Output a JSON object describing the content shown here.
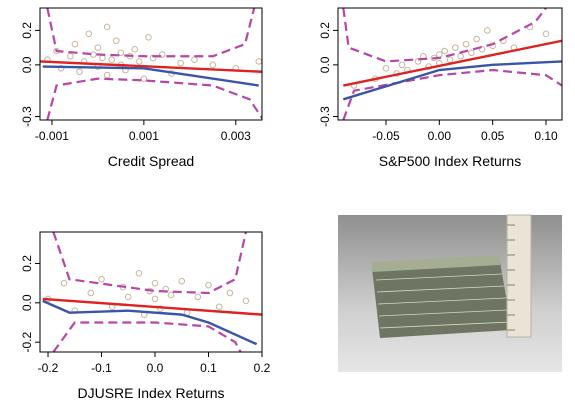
{
  "chart_data": [
    {
      "type": "scatter",
      "x_label": "Credit Spread",
      "xlim": [
        -0.00126,
        0.00357
      ],
      "xticks": [
        -0.001,
        0.001,
        0.003
      ],
      "ylim": [
        -0.32,
        0.33
      ],
      "yticks": [
        -0.3,
        {
          "value": 0,
          "label": "0.0"
        },
        0.2
      ],
      "series": [
        {
          "style": "points",
          "color": "#c9b59c",
          "x": [
            -0.0011,
            -0.0009,
            -0.0008,
            -0.0006,
            -0.0005,
            -0.0004,
            -0.0003,
            -0.0002,
            -0.0001,
            0,
            0,
            0.0001,
            0.0002,
            0.0002,
            0.0003,
            0.0004,
            0.0005,
            0.0005,
            0.0006,
            0.0007,
            0.0008,
            0.0009,
            0.001,
            0.0011,
            0.0012,
            0.0014,
            0.0016,
            0.0018,
            0.0021,
            0.0025,
            0.003,
            0.0035
          ],
          "values": [
            0.03,
            0.08,
            -0.02,
            0.05,
            0.12,
            -0.04,
            0.02,
            0.18,
            0.06,
            -0.01,
            0.1,
            0.04,
            0.22,
            -0.06,
            0.03,
            0.14,
            0,
            0.07,
            -0.03,
            0.05,
            0.09,
            0.02,
            -0.08,
            0.16,
            0.04,
            0.06,
            -0.05,
            0.01,
            0.03,
            0,
            -0.02,
            0.02
          ]
        },
        {
          "style": "dashed",
          "color": "#b845a8",
          "x": [
            -0.0011,
            -0.0009,
            0,
            0.001,
            0.0025,
            0.0032,
            0.0034
          ],
          "values": [
            0.33,
            0.08,
            0.06,
            0.05,
            0.05,
            0.12,
            0.33
          ]
        },
        {
          "style": "dashed",
          "color": "#b845a8",
          "x": [
            -0.0011,
            -0.0009,
            0,
            0.001,
            0.0025,
            0.0033,
            0.0036
          ],
          "values": [
            -0.32,
            -0.12,
            -0.08,
            -0.09,
            -0.12,
            -0.2,
            -0.32
          ]
        },
        {
          "style": "line",
          "color": "#3a55a8",
          "x": [
            -0.0012,
            0.001,
            0.002,
            0.0035
          ],
          "values": [
            -0.01,
            -0.02,
            -0.06,
            -0.12
          ]
        },
        {
          "style": "line",
          "color": "#dd2222",
          "x": [
            -0.00126,
            0.00357
          ],
          "values": [
            0.02,
            -0.04
          ]
        }
      ]
    },
    {
      "type": "scatter",
      "x_label": "S&P500 Index Returns",
      "xlim": [
        -0.095,
        0.115
      ],
      "xticks": [
        -0.05,
        {
          "value": 0,
          "label": "0.00"
        },
        0.05,
        {
          "value": 0.1,
          "label": "0.10"
        }
      ],
      "ylim": [
        -0.32,
        0.33
      ],
      "yticks": [
        -0.3,
        {
          "value": 0,
          "label": "0.0"
        },
        0.2
      ],
      "series": [
        {
          "style": "points",
          "color": "#c9b59c",
          "x": [
            -0.08,
            -0.06,
            -0.05,
            -0.04,
            -0.035,
            -0.03,
            -0.02,
            -0.015,
            -0.01,
            -0.005,
            0,
            0,
            0.005,
            0.01,
            0.015,
            0.02,
            0.025,
            0.03,
            0.035,
            0.04,
            0.045,
            0.05,
            0.06,
            0.07,
            0.085,
            0.1
          ],
          "values": [
            -0.12,
            -0.08,
            -0.02,
            -0.05,
            0,
            -0.03,
            0.02,
            0.05,
            -0.01,
            0.04,
            0.06,
            0.01,
            0.08,
            0.03,
            0.1,
            0.05,
            0.12,
            0.07,
            0.15,
            0.09,
            0.2,
            0.11,
            0.14,
            0.1,
            0.22,
            0.18
          ]
        },
        {
          "style": "dashed",
          "color": "#b845a8",
          "x": [
            -0.09,
            -0.085,
            -0.05,
            0,
            0.05,
            0.09,
            0.1
          ],
          "values": [
            0.33,
            0.1,
            0.02,
            0.04,
            0.12,
            0.25,
            0.33
          ]
        },
        {
          "style": "dashed",
          "color": "#b845a8",
          "x": [
            -0.09,
            -0.08,
            0,
            0.05,
            0.1,
            0.115
          ],
          "values": [
            -0.32,
            -0.15,
            -0.06,
            -0.03,
            -0.06,
            -0.12
          ]
        },
        {
          "style": "line",
          "color": "#3a55a8",
          "x": [
            -0.09,
            0,
            0.05,
            0.115
          ],
          "values": [
            -0.2,
            -0.03,
            0,
            0.02
          ]
        },
        {
          "style": "line",
          "color": "#dd2222",
          "x": [
            -0.09,
            0.115
          ],
          "values": [
            -0.12,
            0.14
          ]
        }
      ]
    },
    {
      "type": "scatter",
      "x_label": "DJUSRE Index Returns",
      "xlim": [
        -0.215,
        0.2
      ],
      "xticks": [
        -0.2,
        -0.1,
        {
          "value": 0,
          "label": "0.0"
        },
        0.1,
        0.2
      ],
      "ylim": [
        -0.25,
        0.36
      ],
      "yticks": [
        -0.2,
        {
          "value": 0,
          "label": "0.0"
        },
        0.2
      ],
      "series": [
        {
          "style": "points",
          "color": "#c9b59c",
          "x": [
            -0.2,
            -0.17,
            -0.15,
            -0.12,
            -0.1,
            -0.08,
            -0.06,
            -0.05,
            -0.03,
            -0.02,
            -0.01,
            0,
            0,
            0.01,
            0.02,
            0.03,
            0.05,
            0.06,
            0.08,
            0.1,
            0.12,
            0.14,
            0.17
          ],
          "values": [
            0.02,
            0.1,
            -0.04,
            0.05,
            0.12,
            -0.02,
            0.08,
            0.03,
            0.15,
            -0.06,
            0.06,
            0.02,
            0.1,
            -0.03,
            0.07,
            0.04,
            0.11,
            -0.05,
            0.03,
            0.09,
            -0.02,
            0.05,
            0.01
          ]
        },
        {
          "style": "dashed",
          "color": "#b845a8",
          "x": [
            -0.19,
            -0.16,
            0,
            0.1,
            0.15,
            0.17
          ],
          "values": [
            0.36,
            0.12,
            0.06,
            0.05,
            0.12,
            0.36
          ]
        },
        {
          "style": "dashed",
          "color": "#b845a8",
          "x": [
            -0.19,
            -0.15,
            0,
            0.1,
            0.15,
            0.16
          ],
          "values": [
            -0.25,
            -0.1,
            -0.1,
            -0.12,
            -0.2,
            -0.25
          ]
        },
        {
          "style": "line",
          "color": "#3a55a8",
          "x": [
            -0.21,
            -0.16,
            -0.05,
            0.05,
            0.1,
            0.19
          ],
          "values": [
            0.01,
            -0.05,
            -0.04,
            -0.06,
            -0.1,
            -0.21
          ]
        },
        {
          "style": "line",
          "color": "#dd2222",
          "x": [
            -0.21,
            0.2
          ],
          "values": [
            0.02,
            -0.06
          ]
        }
      ]
    }
  ]
}
